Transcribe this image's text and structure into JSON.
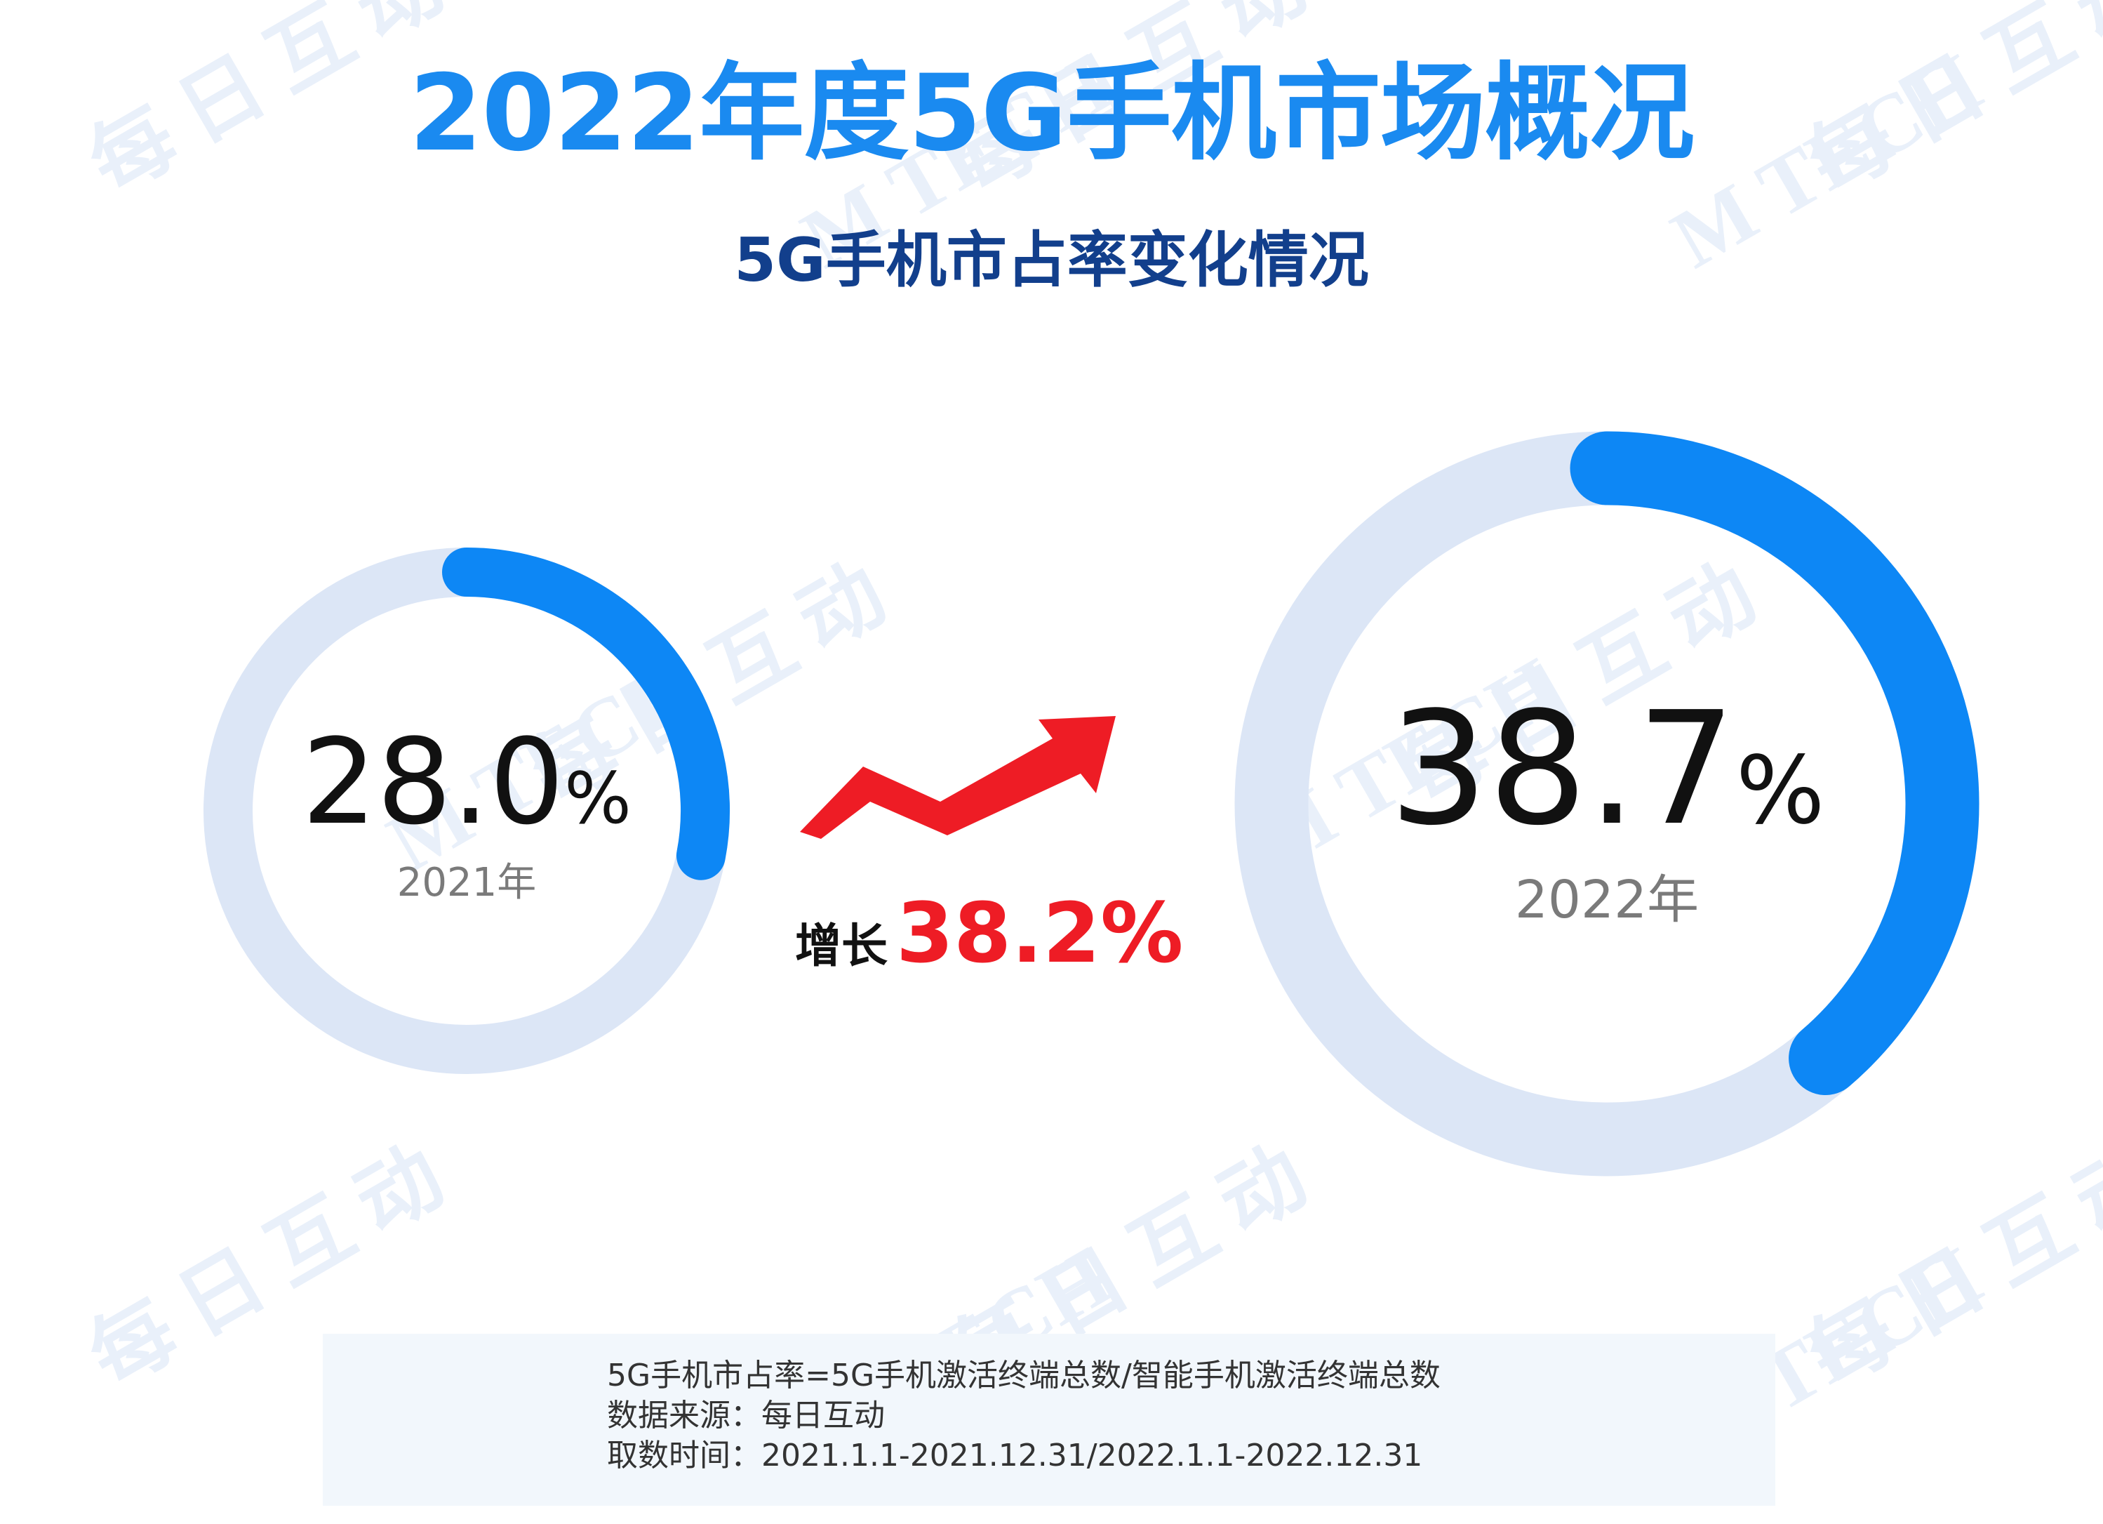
{
  "title": "2022年度5G手机市场概况",
  "subtitle": "5G手机市占率变化情况",
  "watermark": {
    "text": "每日互动",
    "logo": "M TECH"
  },
  "chart_data": {
    "type": "donut",
    "series": [
      {
        "year_label": "2021年",
        "value": 28.0,
        "value_text": "28.0",
        "unit": "%"
      },
      {
        "year_label": "2022年",
        "value": 38.7,
        "value_text": "38.7",
        "unit": "%"
      }
    ],
    "growth": {
      "label": "增长",
      "value": "38.2%",
      "icon": "up-trend-arrow-icon"
    }
  },
  "colors": {
    "title": "#1a8af0",
    "subtitle": "#123f8c",
    "ring_fill": "#0d87f5",
    "ring_track": "#dce6f6",
    "growth": "#ee1c25",
    "note_bg": "#f2f7fc"
  },
  "notes": [
    "5G手机市占率=5G手机激活终端总数/智能手机激活终端总数",
    "数据来源：每日互动",
    "取数时间：2021.1.1-2021.12.31/2022.1.1-2022.12.31"
  ]
}
